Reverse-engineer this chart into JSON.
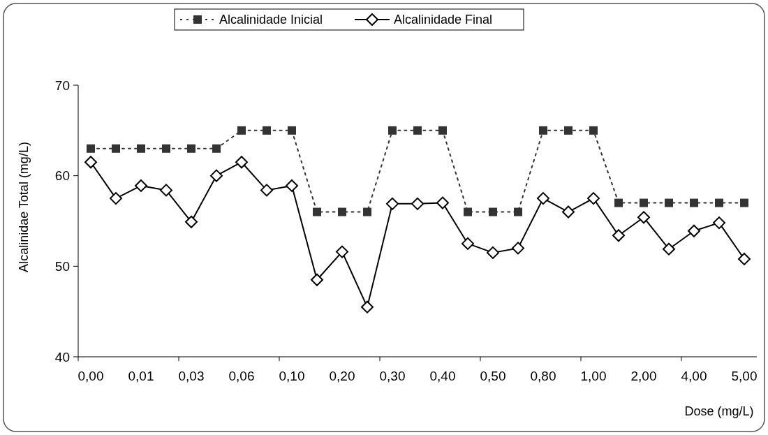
{
  "chart_data": {
    "type": "line",
    "ylabel": "Alcalinidae Total (mg/L)",
    "xlabel": "Dose (mg/L)",
    "categories": [
      "0,00",
      null,
      "0,01",
      null,
      "0,03",
      null,
      "0,06",
      null,
      "0,10",
      null,
      "0,20",
      null,
      "0,30",
      null,
      "0,40",
      null,
      "0,50",
      null,
      "0,80",
      null,
      "1,00",
      null,
      "2,00",
      null,
      "4,00",
      null,
      "5,00"
    ],
    "ylim": [
      40,
      70
    ],
    "yticks": [
      40,
      50,
      60,
      70
    ],
    "grid": false,
    "legend": "top",
    "series": [
      {
        "name": "Alcalinidade Inicial",
        "color": "#333333",
        "marker": "square",
        "line_style": "dotted",
        "values": [
          63,
          63,
          63,
          63,
          63,
          63,
          65,
          65,
          65,
          56,
          56,
          56,
          65,
          65,
          65,
          56,
          56,
          56,
          65,
          65,
          65,
          57,
          57,
          57,
          57,
          57,
          57
        ]
      },
      {
        "name": "Alcalinidade Final",
        "color": "#000000",
        "marker": "diamond",
        "line_style": "solid",
        "values": [
          61.5,
          57.5,
          58.9,
          58.4,
          54.9,
          60.0,
          61.5,
          58.4,
          58.9,
          48.5,
          51.6,
          45.5,
          56.9,
          56.9,
          57.0,
          52.5,
          51.5,
          52.0,
          57.5,
          56.0,
          57.5,
          53.4,
          55.4,
          51.9,
          53.9,
          54.8,
          50.8
        ]
      }
    ]
  }
}
